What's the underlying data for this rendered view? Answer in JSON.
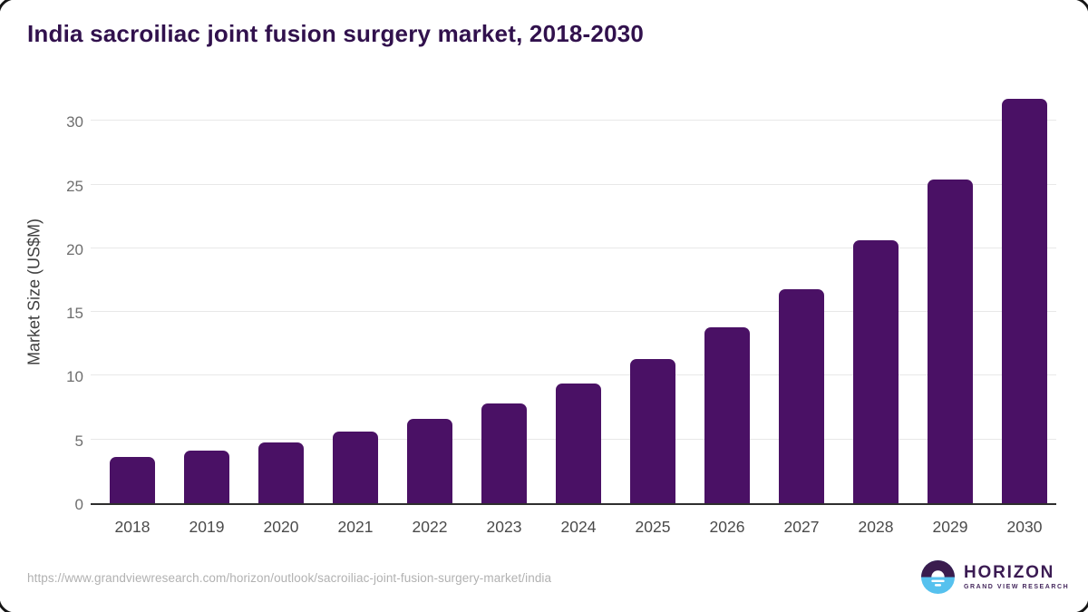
{
  "page": {
    "title": "India sacroiliac joint fusion surgery market, 2018-2030"
  },
  "chart_data": {
    "type": "bar",
    "title": "India sacroiliac joint fusion surgery market, 2018-2030",
    "categories": [
      "2018",
      "2019",
      "2020",
      "2021",
      "2022",
      "2023",
      "2024",
      "2025",
      "2026",
      "2027",
      "2028",
      "2029",
      "2030"
    ],
    "values": [
      3.6,
      4.1,
      4.8,
      5.6,
      6.6,
      7.8,
      9.4,
      11.3,
      13.8,
      16.8,
      20.6,
      25.4,
      31.7
    ],
    "xlabel": "",
    "ylabel": "Market Size (US$M)",
    "ylim": [
      0,
      31.8
    ],
    "yticks": [
      0,
      5,
      10,
      15,
      20,
      25,
      30
    ],
    "grid": true,
    "legend": false,
    "bar_color": "#4a1165"
  },
  "footer": {
    "source_url": "https://www.grandviewresearch.com/horizon/outlook/sacroiliac-joint-fusion-surgery-market/india",
    "logo": {
      "title": "HORIZON",
      "subtitle": "GRAND VIEW RESEARCH"
    }
  },
  "colors": {
    "title_text": "#31114d",
    "bar": "#4a1165",
    "gridline": "#e8e8e8",
    "axis_line": "#2e2e2e",
    "tick_text": "#6e6e6e",
    "url_text": "#b1b1b1",
    "logo_purple": "#3a1c4e",
    "logo_blue": "#56c1ee"
  }
}
